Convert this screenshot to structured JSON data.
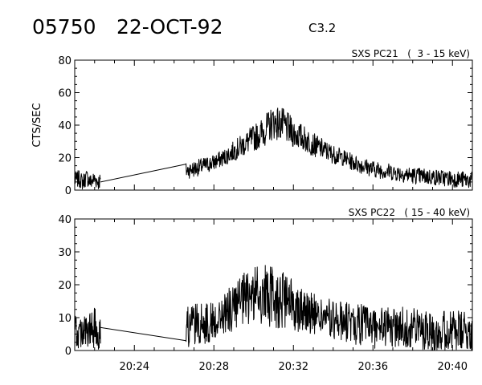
{
  "header": {
    "event_id": "05750",
    "date": "22-OCT-92",
    "flare_class": "C3.2"
  },
  "chart_data": [
    {
      "type": "line",
      "title": "SXS PC21   (  3 - 15 keV)",
      "ylabel": "CTS/SEC",
      "ylim": [
        0,
        80
      ],
      "yticks": [
        0,
        20,
        40,
        60,
        80
      ],
      "xlim": [
        "20:21:00",
        "20:41:00"
      ],
      "xticks": [
        "20:24",
        "20:28",
        "20:32",
        "20:36",
        "20:40"
      ],
      "series": [
        {
          "segments": [
            {
              "x": [
                "20:21:00",
                "20:21:12",
                "20:21:24",
                "20:21:36",
                "20:21:48",
                "20:22:00",
                "20:22:12",
                "20:22:18"
              ],
              "y": [
                6,
                7,
                5,
                8,
                5,
                7,
                5,
                6
              ]
            },
            {
              "x": [
                "20:22:18",
                "20:26:36"
              ],
              "y": [
                5,
                16
              ]
            },
            {
              "x": [
                "20:26:36",
                "20:27:00",
                "20:27:30",
                "20:28:00",
                "20:28:30",
                "20:29:00",
                "20:29:30",
                "20:30:00",
                "20:30:30",
                "20:31:00",
                "20:31:30",
                "20:32:00",
                "20:32:30",
                "20:33:00",
                "20:33:30",
                "20:34:00",
                "20:34:30",
                "20:35:00",
                "20:35:30",
                "20:36:00",
                "20:37:00",
                "20:38:00",
                "20:39:00",
                "20:40:00",
                "20:41:00"
              ],
              "y": [
                12,
                13,
                15,
                17,
                20,
                24,
                28,
                32,
                36,
                42,
                40,
                35,
                32,
                28,
                25,
                22,
                20,
                17,
                15,
                13,
                11,
                9,
                8,
                7,
                6
              ]
            }
          ]
        }
      ]
    },
    {
      "type": "line",
      "title": "SXS PC22   ( 15 - 40 keV)",
      "ylabel": "",
      "ylim": [
        0,
        40
      ],
      "yticks": [
        0,
        10,
        20,
        30,
        40
      ],
      "xlim": [
        "20:21:00",
        "20:41:00"
      ],
      "xticks": [
        "20:24",
        "20:28",
        "20:32",
        "20:36",
        "20:40"
      ],
      "series": [
        {
          "segments": [
            {
              "x": [
                "20:21:00",
                "20:21:12",
                "20:21:24",
                "20:21:36",
                "20:21:48",
                "20:22:00",
                "20:22:12",
                "20:22:18"
              ],
              "y": [
                6,
                5,
                7,
                5,
                6,
                7,
                5,
                6
              ]
            },
            {
              "x": [
                "20:22:18",
                "20:26:36"
              ],
              "y": [
                7,
                3
              ]
            },
            {
              "x": [
                "20:26:36",
                "20:27:00",
                "20:27:30",
                "20:28:00",
                "20:28:30",
                "20:29:00",
                "20:29:30",
                "20:30:00",
                "20:30:30",
                "20:31:00",
                "20:31:30",
                "20:32:00",
                "20:32:30",
                "20:33:00",
                "20:33:30",
                "20:34:00",
                "20:34:30",
                "20:35:00",
                "20:35:30",
                "20:36:00",
                "20:37:00",
                "20:38:00",
                "20:39:00",
                "20:40:00",
                "20:41:00"
              ],
              "y": [
                7,
                8,
                8,
                9,
                11,
                13,
                15,
                17,
                17,
                16,
                15,
                14,
                13,
                11,
                10,
                9,
                9,
                8,
                8,
                7,
                7,
                7,
                6,
                6,
                5
              ]
            }
          ]
        }
      ]
    }
  ]
}
